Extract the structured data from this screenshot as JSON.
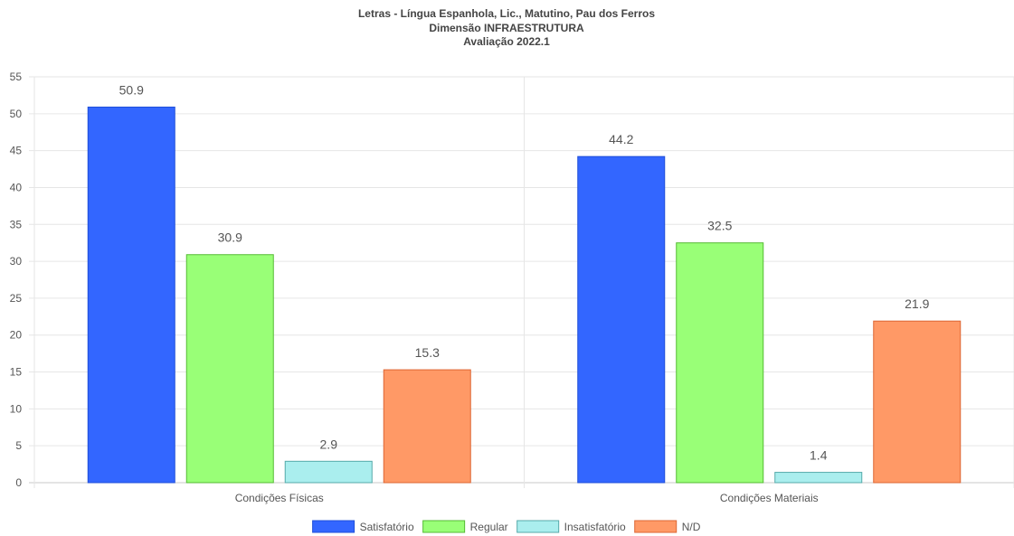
{
  "chart_data": {
    "type": "bar",
    "title": [
      "Letras - Língua Espanhola, Lic., Matutino, Pau dos Ferros",
      "Dimensão INFRAESTRUTURA",
      "Avaliação 2022.1"
    ],
    "categories": [
      "Condições Físicas",
      "Condições Materiais"
    ],
    "series": [
      {
        "name": "Satisfatório",
        "values": [
          50.9,
          44.2
        ],
        "color": "#3366ff",
        "border": "#1f4fd8"
      },
      {
        "name": "Regular",
        "values": [
          30.9,
          32.5
        ],
        "color": "#99ff77",
        "border": "#55bb33"
      },
      {
        "name": "Insatisfatório",
        "values": [
          2.9,
          1.4
        ],
        "color": "#aaeeee",
        "border": "#55aaaa"
      },
      {
        "name": "N/D",
        "values": [
          15.3,
          21.9
        ],
        "color": "#ff9966",
        "border": "#dd6633"
      }
    ],
    "yticks": [
      "0",
      "5",
      "10",
      "15",
      "20",
      "25",
      "30",
      "35",
      "40",
      "45",
      "50",
      "55"
    ],
    "ylim": [
      0,
      55
    ],
    "grid": true,
    "legend": "bottom-center"
  }
}
